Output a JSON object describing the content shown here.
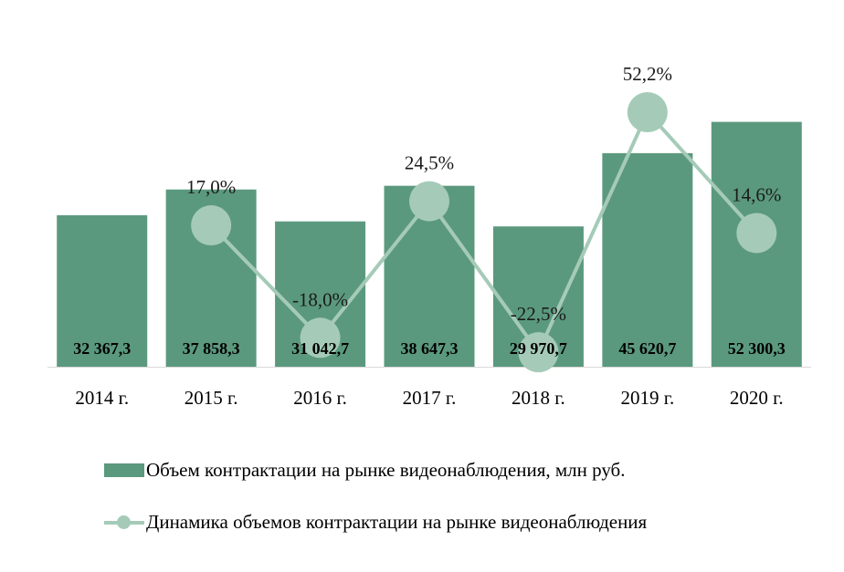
{
  "chart_data": {
    "type": "bar",
    "categories": [
      "2014 г.",
      "2015 г.",
      "2016 г.",
      "2017 г.",
      "2018 г.",
      "2019 г.",
      "2020 г."
    ],
    "series": [
      {
        "name": "Объем контрактации на рынке видеонаблюдения, млн руб.",
        "kind": "bar",
        "values": [
          32367.3,
          37858.3,
          31042.7,
          38647.3,
          29970.7,
          45620.7,
          52300.3
        ],
        "labels": [
          "32 367,3",
          "37 858,3",
          "31 042,7",
          "38 647,3",
          "29 970,7",
          "45 620,7",
          "52 300,3"
        ]
      },
      {
        "name": "Динамика объемов контрактации на рынке видеонаблюдения",
        "kind": "line",
        "values": [
          null,
          17.0,
          -18.0,
          24.5,
          -22.5,
          52.2,
          14.6
        ],
        "labels": [
          null,
          "17,0%",
          "-18,0%",
          "24,5%",
          "-22,5%",
          "52,2%",
          "14,6%"
        ]
      }
    ],
    "bar_axis_range": [
      0,
      53000
    ],
    "line_axis_range": [
      -27,
      63
    ],
    "grid": false,
    "legend_position": "bottom",
    "colors": {
      "bar": "#5b997e",
      "line": "#a5cbb8",
      "axis": "#d9d9d9"
    }
  },
  "legend": {
    "bar_label": "Объем контрактации на рынке видеонаблюдения, млн руб.",
    "line_label": "Динамика объемов контрактации на рынке видеонаблюдения"
  }
}
